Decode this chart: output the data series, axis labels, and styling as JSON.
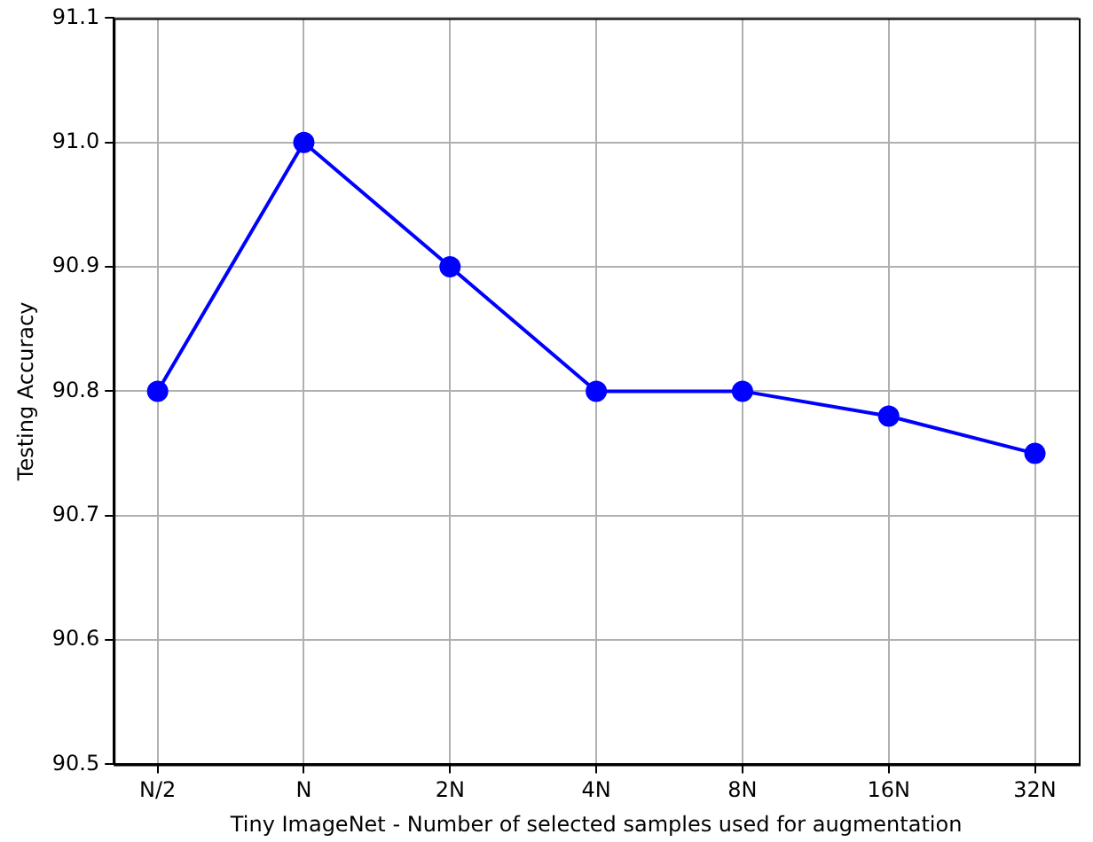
{
  "chart_data": {
    "type": "line",
    "xlabel": "Tiny ImageNet - Number of selected samples used for augmentation",
    "ylabel": "Testing Accuracy",
    "categories": [
      "N/2",
      "N",
      "2N",
      "4N",
      "8N",
      "16N",
      "32N"
    ],
    "series": [
      {
        "color": "#0000ff",
        "values": [
          90.8,
          91.0,
          90.9,
          90.8,
          90.8,
          90.78,
          90.75
        ]
      }
    ],
    "ylim": [
      90.5,
      91.1
    ],
    "yticks": [
      90.5,
      90.6,
      90.7,
      90.8,
      90.9,
      {
        "value": 91.0,
        "label": "91.0"
      },
      91.1
    ],
    "grid": true,
    "marker": "circle",
    "line_style": "solid"
  }
}
